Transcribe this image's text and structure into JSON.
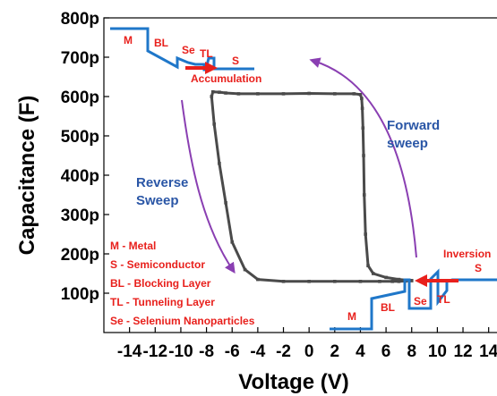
{
  "chart_data": {
    "type": "line",
    "xlabel": "Voltage (V)",
    "ylabel": "Capacitance (F)",
    "xlim": [
      -16,
      15
    ],
    "ylim": [
      0,
      800
    ],
    "x_ticks": [
      -14,
      -12,
      -10,
      -8,
      -6,
      -4,
      -2,
      0,
      2,
      4,
      6,
      8,
      10,
      12,
      14
    ],
    "x_tick_labels": [
      "-14",
      "-12",
      "-10",
      "-8",
      "-6",
      "-4",
      "-2",
      "0",
      "2",
      "4",
      "6",
      "8",
      "10",
      "12",
      "14"
    ],
    "y_ticks": [
      100,
      200,
      300,
      400,
      500,
      600,
      700,
      800
    ],
    "y_tick_labels": [
      "100p",
      "200p",
      "300p",
      "400p",
      "500p",
      "600p",
      "700p",
      "800p"
    ],
    "series": [
      {
        "values_x": [
          8,
          7,
          6,
          5,
          4.6,
          4.4,
          4.3,
          4.25,
          4.2,
          4.15,
          4.1,
          4.0,
          3.5,
          2,
          0,
          -2,
          -4,
          -5.5,
          -6.5,
          -7,
          -7.5,
          -7.6,
          -7.4,
          -7.0,
          -6.5,
          -6.0,
          -5.0,
          -4.0,
          -2,
          0,
          2,
          4,
          5.5,
          6.5,
          7,
          7.5,
          8
        ],
        "values_y": [
          132,
          135,
          140,
          150,
          170,
          250,
          350,
          450,
          520,
          570,
          595,
          605,
          607,
          607,
          608,
          607,
          607,
          607,
          609,
          611,
          612,
          600,
          530,
          430,
          330,
          230,
          160,
          135,
          130,
          130,
          130,
          130,
          130,
          130,
          130,
          131,
          132
        ]
      }
    ],
    "annotations": {
      "top_labels": [
        "M",
        "BL",
        "Se",
        "TL",
        "S"
      ],
      "top_caption": "Accumulation",
      "bottom_labels": [
        "M",
        "BL",
        "Se",
        "TL",
        "S"
      ],
      "bottom_caption": "Inversion",
      "forward": "Forward\nsweep",
      "reverse": "Reverse\nSweep",
      "legend": [
        "M - Metal",
        "S - Semiconductor",
        "BL - Blocking Layer",
        "TL - Tunneling Layer",
        "Se - Selenium Nanoparticles"
      ]
    },
    "colors": {
      "data": "#4a4a4a",
      "band": "#1f77c9",
      "arrow": "#e8201c",
      "sweep": "#8a3fb2",
      "text_red": "#e8201c",
      "text_blue": "#2a56a6"
    }
  }
}
